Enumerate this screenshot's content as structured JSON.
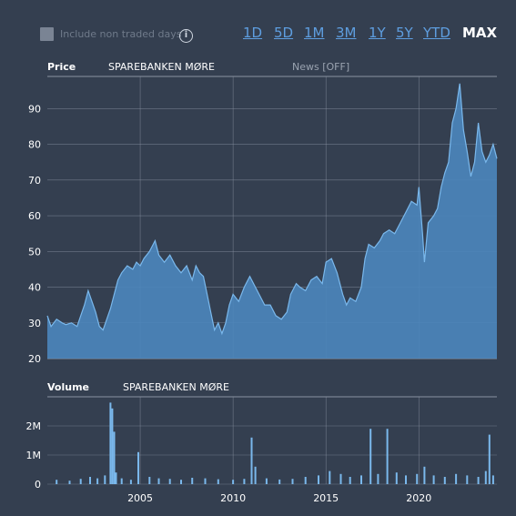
{
  "toolbar": {
    "include_non_traded_label": "Include non traded days",
    "ranges": [
      "1D",
      "5D",
      "1M",
      "3M",
      "1Y",
      "5Y",
      "YTD",
      "MAX"
    ],
    "active_range": "MAX"
  },
  "price_panel": {
    "label": "Price",
    "instrument": "SPAREBANKEN MØRE",
    "news": "News [OFF]"
  },
  "volume_panel": {
    "label": "Volume",
    "instrument": "SPAREBANKEN MØRE"
  },
  "colors": {
    "background": "#343f50",
    "area_fill": "#4b86bd",
    "line": "#7ab8ec",
    "grid": "#8a93a2",
    "accent_link": "#5e9ee0"
  },
  "chart_data": [
    {
      "type": "area",
      "title": "Price",
      "xlabel": "",
      "ylabel": "",
      "ylim": [
        20,
        99
      ],
      "xlim": [
        2000.0,
        2024.2
      ],
      "yticks": [
        20,
        30,
        40,
        50,
        60,
        70,
        80,
        90
      ],
      "xticks": [
        "2005",
        "2010",
        "2015",
        "2020"
      ],
      "grid": true,
      "series": [
        {
          "name": "SPAREBANKEN MØRE",
          "x": [
            2000.0,
            2000.2,
            2000.5,
            2000.8,
            2001.0,
            2001.3,
            2001.6,
            2001.8,
            2002.0,
            2002.2,
            2002.4,
            2002.6,
            2002.8,
            2003.0,
            2003.2,
            2003.4,
            2003.6,
            2003.8,
            2004.0,
            2004.3,
            2004.6,
            2004.8,
            2005.0,
            2005.2,
            2005.5,
            2005.8,
            2006.0,
            2006.3,
            2006.6,
            2006.9,
            2007.2,
            2007.5,
            2007.8,
            2008.0,
            2008.2,
            2008.4,
            2008.6,
            2008.8,
            2009.0,
            2009.2,
            2009.4,
            2009.6,
            2009.8,
            2010.0,
            2010.3,
            2010.6,
            2010.9,
            2011.1,
            2011.4,
            2011.7,
            2012.0,
            2012.3,
            2012.6,
            2012.9,
            2013.1,
            2013.4,
            2013.6,
            2013.9,
            2014.2,
            2014.5,
            2014.8,
            2015.0,
            2015.3,
            2015.6,
            2015.9,
            2016.1,
            2016.3,
            2016.6,
            2016.9,
            2017.1,
            2017.3,
            2017.6,
            2017.9,
            2018.1,
            2018.4,
            2018.7,
            2019.0,
            2019.3,
            2019.6,
            2019.9,
            2020.0,
            2020.2,
            2020.3,
            2020.5,
            2020.8,
            2021.0,
            2021.2,
            2021.4,
            2021.6,
            2021.8,
            2022.0,
            2022.2,
            2022.4,
            2022.6,
            2022.8,
            2023.0,
            2023.2,
            2023.4,
            2023.6,
            2023.8,
            2024.0,
            2024.2
          ],
          "values": [
            32,
            29,
            31,
            30,
            29.5,
            30,
            29,
            32,
            35,
            39,
            36,
            33,
            29,
            28,
            31,
            34,
            38,
            42,
            44,
            46,
            45,
            47,
            46,
            48,
            50,
            53,
            49,
            47,
            49,
            46,
            44,
            46,
            42,
            46,
            44,
            43,
            38,
            33,
            28,
            30,
            27,
            30,
            35,
            38,
            36,
            40,
            43,
            41,
            38,
            35,
            35,
            32,
            31,
            33,
            38,
            41,
            40,
            39,
            42,
            43,
            41,
            47,
            48,
            44,
            38,
            35,
            37,
            36,
            40,
            48,
            52,
            51,
            53,
            55,
            56,
            55,
            58,
            61,
            64,
            63,
            68,
            55,
            47,
            58,
            60,
            62,
            68,
            72,
            75,
            86,
            90,
            97,
            84,
            78,
            71,
            75,
            86,
            78,
            75,
            77,
            80,
            76
          ]
        }
      ]
    },
    {
      "type": "bar",
      "title": "Volume",
      "xlabel": "",
      "ylabel": "",
      "ylim": [
        0,
        3000000
      ],
      "xlim": [
        2000.0,
        2024.2
      ],
      "yticks": [
        "0",
        "1M",
        "2M"
      ],
      "xticks": [
        "2005",
        "2010",
        "2015",
        "2020"
      ],
      "grid": true,
      "series": [
        {
          "name": "SPAREBANKEN MØRE",
          "x": [
            2000.5,
            2001.2,
            2001.8,
            2002.3,
            2002.7,
            2003.1,
            2003.4,
            2003.5,
            2003.6,
            2003.7,
            2004.0,
            2004.5,
            2004.9,
            2005.5,
            2006.0,
            2006.6,
            2007.2,
            2007.8,
            2008.5,
            2009.2,
            2010.0,
            2010.6,
            2011.0,
            2011.2,
            2011.8,
            2012.5,
            2013.2,
            2013.9,
            2014.6,
            2015.2,
            2015.8,
            2016.3,
            2016.9,
            2017.4,
            2017.8,
            2018.3,
            2018.8,
            2019.3,
            2019.9,
            2020.3,
            2020.8,
            2021.4,
            2022.0,
            2022.6,
            2023.2,
            2023.6,
            2023.8,
            2024.0
          ],
          "values": [
            150000,
            120000,
            180000,
            250000,
            200000,
            300000,
            2800000,
            2600000,
            1800000,
            400000,
            200000,
            150000,
            1100000,
            250000,
            200000,
            180000,
            150000,
            220000,
            200000,
            170000,
            150000,
            180000,
            1600000,
            600000,
            200000,
            160000,
            180000,
            250000,
            300000,
            450000,
            350000,
            250000,
            300000,
            1900000,
            350000,
            1900000,
            400000,
            300000,
            350000,
            600000,
            300000,
            250000,
            350000,
            300000,
            250000,
            450000,
            1700000,
            300000
          ]
        }
      ]
    }
  ]
}
